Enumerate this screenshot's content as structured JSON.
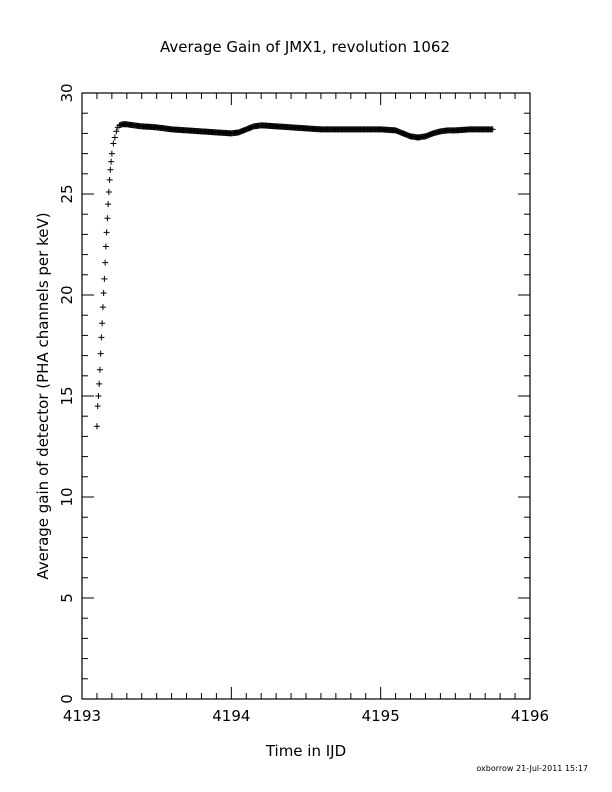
{
  "chart_data": {
    "type": "scatter",
    "title": "Average Gain of JMX1, revolution 1062",
    "xlabel": "Time in IJD",
    "ylabel": "Average gain of detector (PHA channels per keV)",
    "xlim": [
      4193,
      4196
    ],
    "ylim": [
      0,
      30
    ],
    "x_ticks": [
      "4193",
      "4194",
      "4195",
      "4196"
    ],
    "y_ticks": [
      "0",
      "5",
      "10",
      "15",
      "20",
      "25",
      "30"
    ],
    "grid": false,
    "marker": "+",
    "series": [
      {
        "x": [
          4193.1,
          4193.105,
          4193.11,
          4193.115,
          4193.12,
          4193.125,
          4193.13,
          4193.135,
          4193.14,
          4193.145,
          4193.15,
          4193.155,
          4193.16,
          4193.165,
          4193.17,
          4193.175,
          4193.18,
          4193.185,
          4193.19,
          4193.195,
          4193.2,
          4193.21,
          4193.22,
          4193.23,
          4193.24,
          4193.25,
          4193.27,
          4193.3,
          4193.35,
          4193.4,
          4193.5,
          4193.6,
          4193.7,
          4193.8,
          4193.9,
          4194.0,
          4194.05,
          4194.1,
          4194.15,
          4194.2,
          4194.3,
          4194.4,
          4194.5,
          4194.6,
          4194.7,
          4194.8,
          4194.9,
          4195.0,
          4195.1,
          4195.15,
          4195.2,
          4195.25,
          4195.3,
          4195.35,
          4195.4,
          4195.45,
          4195.5,
          4195.6,
          4195.7,
          4195.75
        ],
        "values": [
          13.5,
          14.5,
          15.0,
          15.6,
          16.3,
          17.1,
          17.9,
          18.6,
          19.4,
          20.1,
          20.8,
          21.6,
          22.4,
          23.1,
          23.8,
          24.5,
          25.1,
          25.7,
          26.2,
          26.6,
          27.0,
          27.5,
          27.8,
          28.1,
          28.3,
          28.4,
          28.45,
          28.45,
          28.4,
          28.35,
          28.3,
          28.2,
          28.15,
          28.1,
          28.05,
          28.0,
          28.05,
          28.2,
          28.35,
          28.4,
          28.35,
          28.3,
          28.25,
          28.2,
          28.2,
          28.2,
          28.2,
          28.2,
          28.15,
          28.0,
          27.85,
          27.8,
          27.85,
          28.0,
          28.1,
          28.15,
          28.15,
          28.2,
          28.2,
          28.2
        ]
      }
    ]
  },
  "footer": "oxborrow 21-Jul-2011 15:17"
}
